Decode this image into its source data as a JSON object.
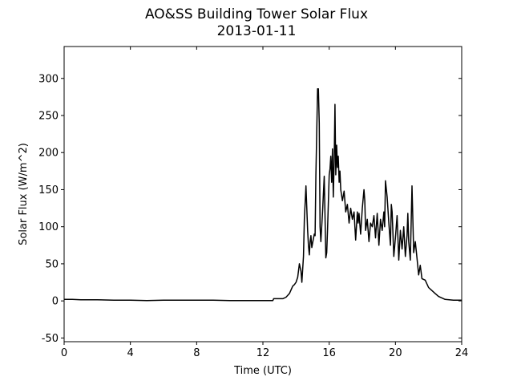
{
  "chart_data": {
    "type": "line",
    "title": "AO&SS Building Tower Solar Flux",
    "subtitle": "2013-01-11",
    "xlabel": "Time (UTC)",
    "ylabel": "Solar Flux (W/m^2)",
    "xlim": [
      0,
      24
    ],
    "ylim": [
      -55,
      343
    ],
    "x_ticks": [
      0,
      4,
      8,
      12,
      16,
      20,
      24
    ],
    "y_ticks": [
      -50,
      0,
      50,
      100,
      150,
      200,
      250,
      300
    ],
    "grid": false,
    "line_color": "#000000",
    "series": [
      {
        "x": [
          0,
          0.5,
          1,
          2,
          3,
          4,
          5,
          6,
          7,
          8,
          9,
          10,
          11,
          12,
          12.6,
          12.65,
          13,
          13.2,
          13.4,
          13.6,
          13.8,
          13.9,
          14.0,
          14.1,
          14.2,
          14.3,
          14.35,
          14.45,
          14.5,
          14.6,
          14.7,
          14.75,
          14.8,
          14.85,
          14.9,
          14.95,
          15.0,
          15.1,
          15.15,
          15.2,
          15.3,
          15.35,
          15.4,
          15.45,
          15.5,
          15.6,
          15.7,
          15.8,
          15.85,
          15.9,
          16.0,
          16.05,
          16.1,
          16.15,
          16.2,
          16.25,
          16.3,
          16.35,
          16.4,
          16.45,
          16.5,
          16.55,
          16.6,
          16.65,
          16.7,
          16.8,
          16.9,
          17.0,
          17.1,
          17.2,
          17.3,
          17.4,
          17.5,
          17.6,
          17.7,
          17.75,
          17.8,
          17.9,
          18.0,
          18.1,
          18.15,
          18.2,
          18.3,
          18.4,
          18.5,
          18.6,
          18.7,
          18.8,
          18.9,
          19.0,
          19.1,
          19.2,
          19.3,
          19.35,
          19.4,
          19.5,
          19.6,
          19.7,
          19.75,
          19.8,
          19.9,
          20.0,
          20.1,
          20.2,
          20.3,
          20.4,
          20.5,
          20.6,
          20.7,
          20.75,
          20.8,
          20.9,
          21.0,
          21.1,
          21.2,
          21.3,
          21.4,
          21.5,
          21.6,
          21.8,
          22.0,
          22.2,
          22.4,
          22.6,
          23.0,
          23.5,
          24.0
        ],
        "y": [
          2,
          2,
          1.5,
          1.5,
          1,
          1,
          0.5,
          1,
          1,
          1,
          1,
          0.5,
          0.5,
          0.5,
          0.5,
          3,
          3,
          3,
          5,
          10,
          20,
          22,
          25,
          32,
          50,
          40,
          25,
          60,
          110,
          155,
          95,
          75,
          62,
          80,
          88,
          72,
          78,
          90,
          88,
          170,
          286,
          286,
          240,
          100,
          80,
          120,
          168,
          58,
          65,
          95,
          170,
          178,
          195,
          160,
          205,
          140,
          188,
          265,
          170,
          210,
          180,
          195,
          160,
          175,
          150,
          135,
          148,
          120,
          130,
          105,
          125,
          110,
          120,
          82,
          120,
          105,
          118,
          90,
          125,
          150,
          135,
          95,
          110,
          80,
          105,
          100,
          115,
          85,
          118,
          75,
          110,
          95,
          120,
          100,
          162,
          140,
          105,
          75,
          130,
          120,
          60,
          85,
          115,
          55,
          95,
          70,
          100,
          60,
          88,
          118,
          80,
          55,
          155,
          65,
          80,
          58,
          35,
          48,
          30,
          28,
          18,
          14,
          10,
          6,
          2,
          1,
          1
        ]
      }
    ]
  }
}
